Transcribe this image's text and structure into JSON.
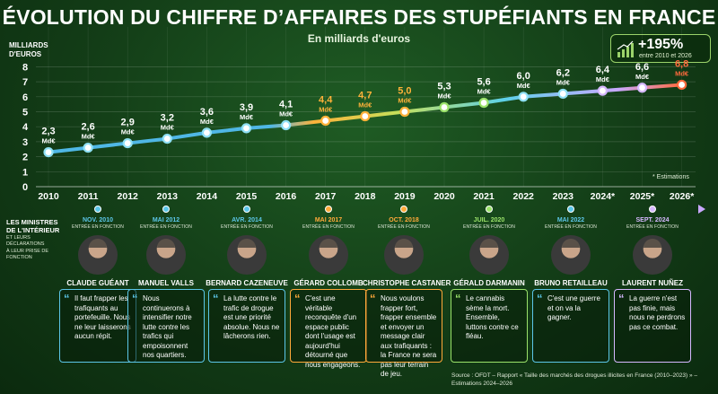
{
  "title": "ÉVOLUTION DU CHIFFRE D’AFFAIRES DES STUPÉFIANTS EN FRANCE",
  "subtitle": "En milliards d'euros",
  "y_unit_label": "MILLIARDS D'EUROS",
  "growth_box": {
    "value": "+195%",
    "caption": "entre 2010 et 2026",
    "icon": "bar-growth-icon"
  },
  "estimations_note": "* Estimations",
  "chart_data": {
    "type": "line",
    "x": [
      "2010",
      "2011",
      "2012",
      "2013",
      "2014",
      "2015",
      "2016",
      "2017",
      "2018",
      "2019",
      "2020",
      "2021",
      "2022",
      "2023",
      "2024*",
      "2025*",
      "2026*"
    ],
    "values": [
      2.3,
      2.6,
      2.9,
      3.2,
      3.6,
      3.9,
      4.1,
      4.4,
      4.7,
      5.0,
      5.3,
      5.6,
      6.0,
      6.2,
      6.4,
      6.6,
      6.8
    ],
    "value_labels": [
      "2,3",
      "2,6",
      "2,9",
      "3,2",
      "3,6",
      "3,9",
      "4,1",
      "4,4",
      "4,7",
      "5,0",
      "5,3",
      "5,6",
      "6,0",
      "6,2",
      "6,4",
      "6,6",
      "6,8"
    ],
    "value_unit": "Md€",
    "y_ticks": [
      0,
      1,
      2,
      3,
      4,
      5,
      6,
      7,
      8
    ],
    "ylim": [
      0,
      8
    ],
    "grid": true,
    "colors": {
      "early": "#8fe0f5",
      "mid_orange": "#ffb23a",
      "green": "#9be36a",
      "lavender": "#d6b8ff",
      "final": "#ff6a3d"
    }
  },
  "ministers_header": {
    "line1": "LES MINISTRES",
    "line2": "DE L'INTÉRIEUR",
    "line3": "ET LEURS DÉCLARATIONS",
    "line4": "À LEUR PRISE DE FONCTION"
  },
  "ministers": [
    {
      "date": "NOV. 2010",
      "entry": "ENTRÉE EN FONCTION",
      "name": "CLAUDE GUÉANT",
      "quote": "Il faut frapper les trafiquants au portefeuille. Nous ne leur laisserons aucun répit.",
      "color": "#5cc6e8"
    },
    {
      "date": "MAI 2012",
      "entry": "ENTRÉE EN FONCTION",
      "name": "MANUEL VALLS",
      "quote": "Nous continuerons à intensifier notre lutte contre les trafics qui empoisonnent nos quartiers.",
      "color": "#5cc6e8"
    },
    {
      "date": "AVR. 2014",
      "entry": "ENTRÉE EN FONCTION",
      "name": "BERNARD CAZENEUVE",
      "quote": "La lutte contre le trafic de drogue est une priorité absolue. Nous ne lâcherons rien.",
      "color": "#5cc6e8"
    },
    {
      "date": "MAI 2017",
      "entry": "ENTRÉE EN FONCTION",
      "name": "GÉRARD COLLOMB",
      "quote": "C'est une véritable reconquête d'un espace public dont l'usage est aujourd'hui détourné que nous engageons.",
      "color": "#ffa93a"
    },
    {
      "date": "OCT. 2018",
      "entry": "ENTRÉE EN FONCTION",
      "name": "CHRISTOPHE CASTANER",
      "quote": "Nous voulons frapper fort, frapper ensemble et envoyer un message clair aux trafiquants : la France ne sera pas leur terrain de jeu.",
      "color": "#ffa93a"
    },
    {
      "date": "JUIL. 2020",
      "entry": "ENTRÉE EN FONCTION",
      "name": "GÉRALD DARMANIN",
      "quote": "Le cannabis sème la mort. Ensemble, luttons contre ce fléau.",
      "color": "#9be36a"
    },
    {
      "date": "MAI 2022",
      "entry": "ENTRÉE EN FONCTION",
      "name": "BRUNO RETAILLEAU",
      "quote": "C'est une guerre et on va la gagner.",
      "color": "#5cc6e8"
    },
    {
      "date": "SEPT. 2024",
      "entry": "ENTRÉE EN FONCTION",
      "name": "LAURENT NUÑEZ",
      "quote": "La guerre n'est pas finie, mais nous ne perdrons pas ce combat.",
      "color": "#d6b8ff"
    }
  ],
  "source": "Source : OFDT – Rapport « Taille des marchés des drogues illicites en France (2010–2023) » – Estimations 2024–2026"
}
